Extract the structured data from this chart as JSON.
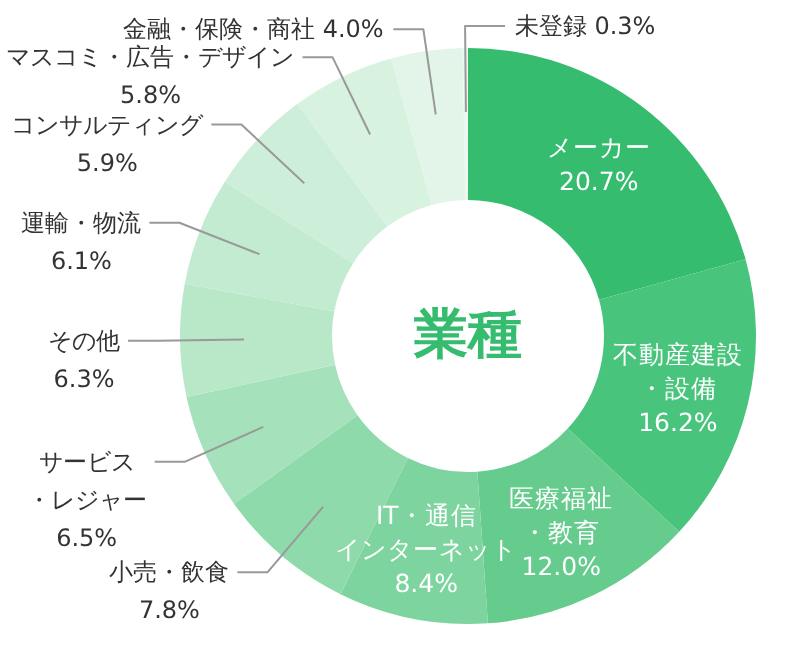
{
  "chart_data": {
    "type": "donut",
    "title": "業種",
    "categories": [
      "メーカー",
      "不動産建設・設備",
      "医療福祉・教育",
      "IT・通信インターネット",
      "小売・飲食",
      "サービス・レジャー",
      "その他",
      "運輸・物流",
      "コンサルティング",
      "マスコミ・広告・デザイン",
      "金融・保険・商社",
      "未登録"
    ],
    "values": [
      20.7,
      16.2,
      12.0,
      8.4,
      7.8,
      6.5,
      6.3,
      6.1,
      5.9,
      5.8,
      4.0,
      0.3
    ],
    "value_labels": [
      "20.7%",
      "16.2%",
      "12.0%",
      "8.4%",
      "7.8%",
      "6.5%",
      "6.3%",
      "6.1%",
      "5.9%",
      "5.8%",
      "4.0%",
      "0.3%"
    ],
    "colors": [
      "#36bc6f",
      "#48c47c",
      "#66cc8e",
      "#7dd49e",
      "#8fdaaa",
      "#a5e2bb",
      "#b9e8c9",
      "#c3ebd1",
      "#cdeed8",
      "#d8f2e0",
      "#e2f5e8",
      "#ecf8ef"
    ]
  }
}
